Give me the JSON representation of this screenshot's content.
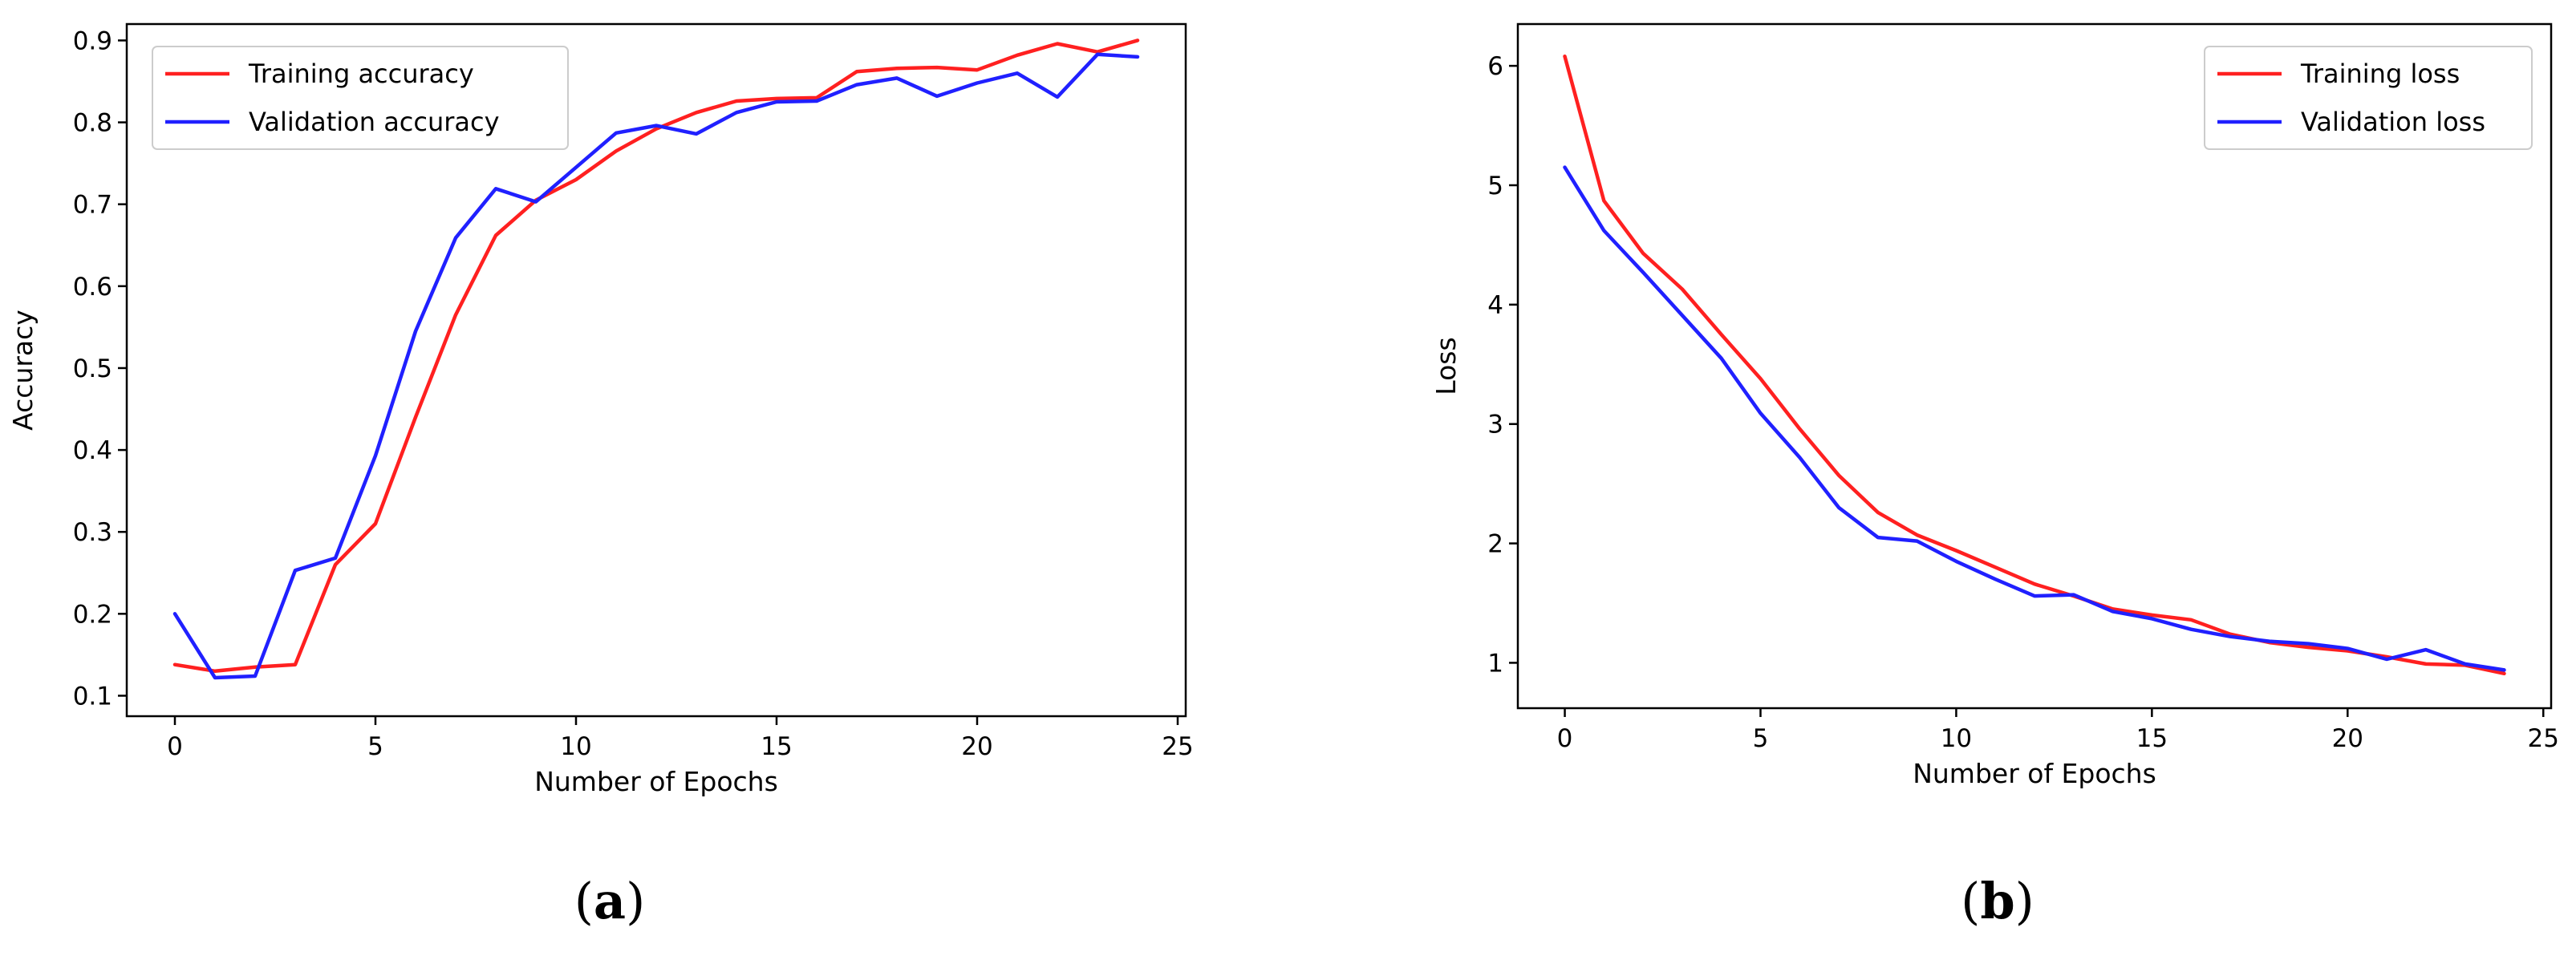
{
  "chart_data": [
    {
      "type": "line",
      "panel_label": "a",
      "title": "",
      "xlabel": "Number of Epochs",
      "ylabel": "Accuracy",
      "xlim": [
        -1.2,
        25.2
      ],
      "ylim": [
        0.075,
        0.92
      ],
      "xticks": [
        0,
        5,
        10,
        15,
        20,
        25
      ],
      "yticks": [
        0.1,
        0.2,
        0.3,
        0.4,
        0.5,
        0.6,
        0.7,
        0.8,
        0.9
      ],
      "x": [
        0,
        1,
        2,
        3,
        4,
        5,
        6,
        7,
        8,
        9,
        10,
        11,
        12,
        13,
        14,
        15,
        16,
        17,
        18,
        19,
        20,
        21,
        22,
        23,
        24
      ],
      "grid": false,
      "legend_position": "top-left",
      "series": [
        {
          "name": "Training accuracy",
          "color": "#ff2020",
          "values": [
            0.138,
            0.13,
            0.135,
            0.138,
            0.26,
            0.31,
            0.44,
            0.565,
            0.662,
            0.705,
            0.73,
            0.765,
            0.792,
            0.812,
            0.826,
            0.829,
            0.83,
            0.862,
            0.866,
            0.867,
            0.864,
            0.882,
            0.896,
            0.886,
            0.9
          ]
        },
        {
          "name": "Validation accuracy",
          "color": "#2020ff",
          "values": [
            0.2,
            0.122,
            0.124,
            0.253,
            0.268,
            0.393,
            0.545,
            0.659,
            0.719,
            0.703,
            0.745,
            0.787,
            0.796,
            0.786,
            0.812,
            0.825,
            0.826,
            0.846,
            0.854,
            0.832,
            0.848,
            0.86,
            0.831,
            0.883,
            0.88
          ]
        }
      ]
    },
    {
      "type": "line",
      "panel_label": "b",
      "title": "",
      "xlabel": "Number of Epochs",
      "ylabel": "Loss",
      "xlim": [
        -1.2,
        25.2
      ],
      "ylim": [
        0.62,
        6.35
      ],
      "xticks": [
        0,
        5,
        10,
        15,
        20,
        25
      ],
      "yticks": [
        1,
        2,
        3,
        4,
        5,
        6
      ],
      "x": [
        0,
        1,
        2,
        3,
        4,
        5,
        6,
        7,
        8,
        9,
        10,
        11,
        12,
        13,
        14,
        15,
        16,
        17,
        18,
        19,
        20,
        21,
        22,
        23,
        24
      ],
      "grid": false,
      "legend_position": "top-right",
      "series": [
        {
          "name": "Training loss",
          "color": "#ff2020",
          "values": [
            6.08,
            4.87,
            4.43,
            4.13,
            3.75,
            3.38,
            2.96,
            2.57,
            2.26,
            2.07,
            1.94,
            1.8,
            1.66,
            1.56,
            1.45,
            1.4,
            1.36,
            1.24,
            1.17,
            1.13,
            1.1,
            1.05,
            0.99,
            0.98,
            0.91
          ]
        },
        {
          "name": "Validation loss",
          "color": "#2020ff",
          "values": [
            5.15,
            4.62,
            4.27,
            3.91,
            3.55,
            3.09,
            2.72,
            2.3,
            2.05,
            2.02,
            1.85,
            1.7,
            1.56,
            1.57,
            1.43,
            1.37,
            1.28,
            1.22,
            1.18,
            1.16,
            1.12,
            1.03,
            1.11,
            0.99,
            0.94
          ]
        }
      ]
    }
  ]
}
